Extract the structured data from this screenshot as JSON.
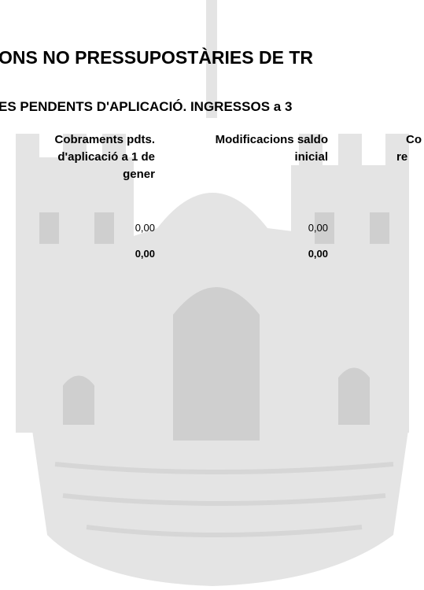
{
  "header": {
    "title": "ONS NO PRESSUPOSTÀRIES DE TR",
    "subtitle": "ES PENDENTS D'APLICACIÓ. INGRESSOS a 3"
  },
  "table": {
    "columns": [
      {
        "lines": [
          "Cobraments pdts.",
          "d'aplicació a 1 de",
          "gener"
        ]
      },
      {
        "lines": [
          "Modificacions saldo",
          "inicial"
        ]
      },
      {
        "lines": [
          "Co",
          "re"
        ]
      }
    ],
    "rows": [
      [
        "0,00",
        "0,00"
      ]
    ],
    "totals": [
      "0,00",
      "0,00"
    ]
  }
}
